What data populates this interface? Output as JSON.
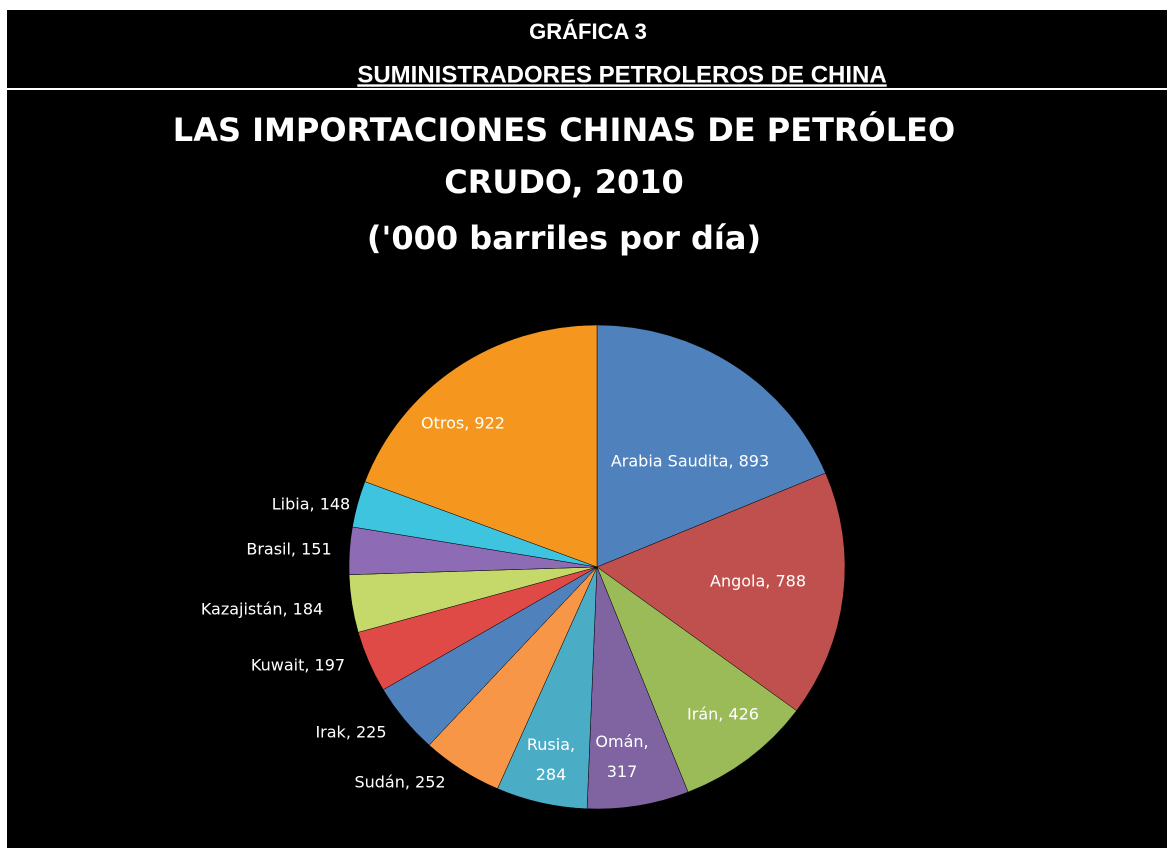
{
  "header": {
    "title": "GRÁFICA 3",
    "subtitle": "SUMINISTRADORES PETROLEROS DE CHINA"
  },
  "chart_data": {
    "type": "pie",
    "title_lines": [
      "LAS IMPORTACIONES CHINAS DE PETRÓLEO",
      "CRUDO, 2010",
      "('000 barriles por día)"
    ],
    "categories": [
      "Arabia Saudita",
      "Angola",
      "Irán",
      "Omán",
      "Rusia",
      "Sudán",
      "Irak",
      "Kuwait",
      "Kazajistán",
      "Brasil",
      "Libia",
      "Otros"
    ],
    "values": [
      893,
      788,
      426,
      317,
      284,
      252,
      225,
      197,
      184,
      151,
      148,
      922
    ],
    "value_labels": [
      "Arabia Saudita, 893",
      "Angola, 788",
      "Irán, 426",
      "Omán, 317",
      "Rusia, 284",
      "Sudán, 252",
      "Irak, 225",
      "Kuwait, 197",
      "Kazajistán, 184",
      "Brasil, 151",
      "Libia, 148",
      "Otros, 922"
    ],
    "colors": [
      "#4f81bd",
      "#c0504d",
      "#9bbb59",
      "#8064a2",
      "#4bacc6",
      "#f79646",
      "#4f81bd",
      "#e04a46",
      "#c4d96a",
      "#8d6bb5",
      "#3fc4e0",
      "#f5961e"
    ]
  }
}
